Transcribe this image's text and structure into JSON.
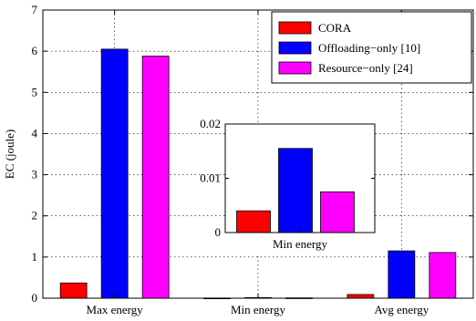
{
  "chart_data": [
    {
      "type": "bar",
      "categories": [
        "Max energy",
        "Min energy",
        "Avg energy"
      ],
      "series": [
        {
          "name": "CORA",
          "color": "#ff0000",
          "values": [
            0.37,
            0.004,
            0.09
          ]
        },
        {
          "name": "Offloading−only [10]",
          "color": "#0000ff",
          "values": [
            6.05,
            0.0155,
            1.15
          ]
        },
        {
          "name": "Resource−only [24]",
          "color": "#ff00ff",
          "values": [
            5.88,
            0.0075,
            1.11
          ]
        }
      ],
      "ylabel": "EC (joule)",
      "ylim": [
        0,
        7
      ],
      "yticks": [
        0,
        1,
        2,
        3,
        4,
        5,
        6,
        7
      ],
      "grid": true,
      "legend_position": "top-right"
    },
    {
      "type": "bar",
      "inset": true,
      "categories": [
        "Min energy"
      ],
      "xlabel": "Min energy",
      "series": [
        {
          "name": "CORA",
          "color": "#ff0000",
          "values": [
            0.004
          ]
        },
        {
          "name": "Offloading−only [10]",
          "color": "#0000ff",
          "values": [
            0.0155
          ]
        },
        {
          "name": "Resource−only [24]",
          "color": "#ff00ff",
          "values": [
            0.0075
          ]
        }
      ],
      "ylim": [
        0,
        0.02
      ],
      "yticks": [
        0,
        0.01,
        0.02
      ],
      "ytick_labels": [
        "0",
        "0.01",
        "0.02"
      ]
    }
  ]
}
